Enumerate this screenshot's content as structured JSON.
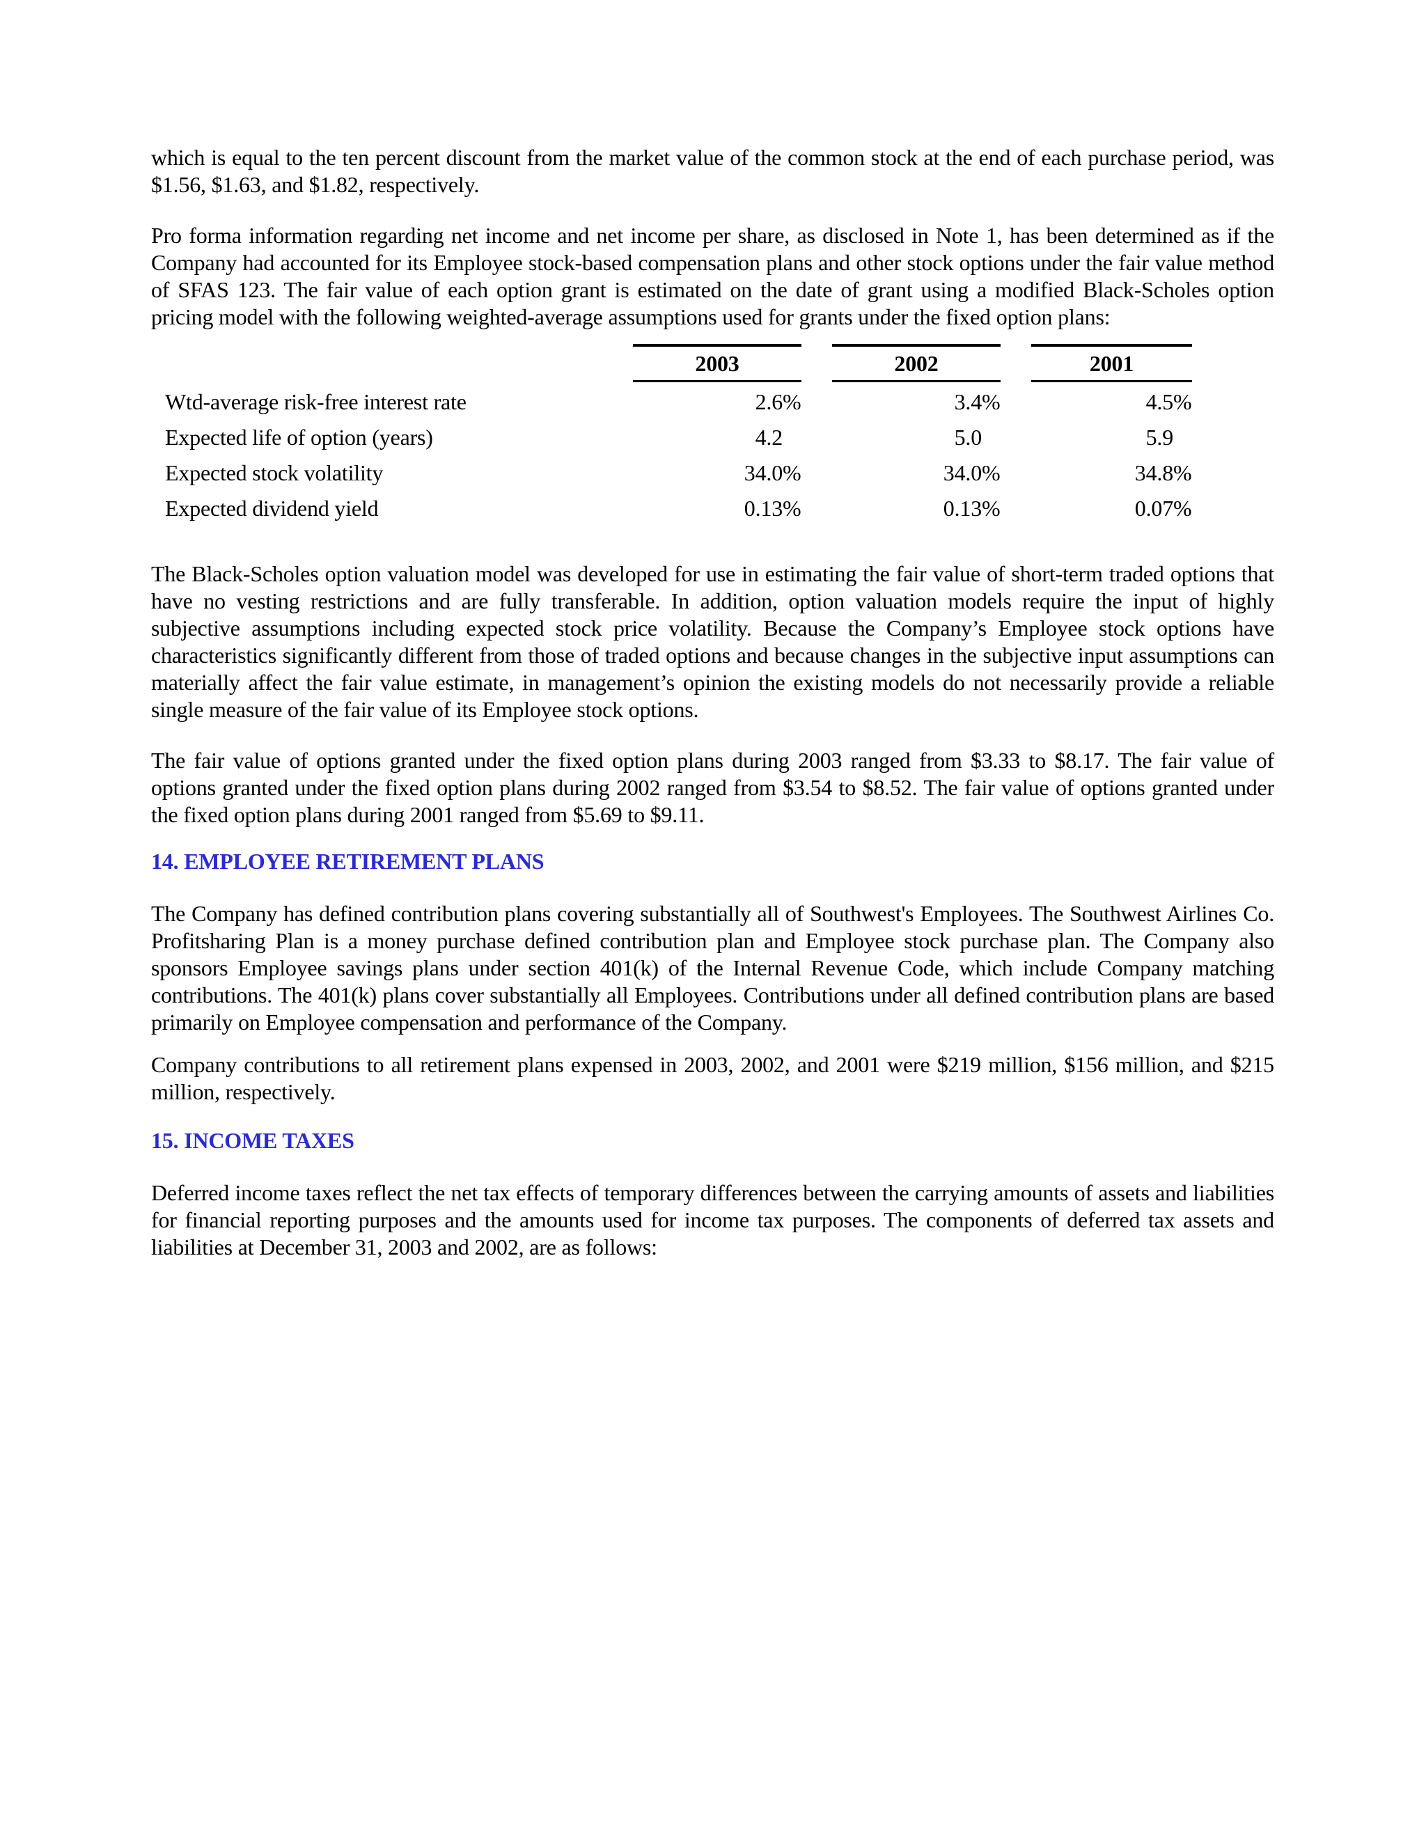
{
  "styles": {
    "heading_color": "#2b2bd1",
    "text_color": "#000000",
    "page_background": "#ffffff"
  },
  "content": {
    "para_discount": "which is equal to the ten percent discount from the market value of the common stock at the end of each purchase period, was $1.56, $1.63, and $1.82, respectively.",
    "para_proforma": "Pro forma information regarding net income and net income per share, as disclosed in Note 1, has been determined as if the Company had accounted for its Employee stock-based compensation plans and other stock options under the fair value method of SFAS 123.  The fair value of each option grant is estimated on the date of grant using a modified Black-Scholes option pricing model with the following weighted-average assumptions used for grants under the fixed option plans:",
    "assumptions_table": {
      "columns": [
        "2003",
        "2002",
        "2001"
      ],
      "rows": [
        {
          "label": "Wtd-average risk-free interest rate",
          "values": [
            "2.6",
            "3.4",
            "4.5"
          ],
          "suffix": "%"
        },
        {
          "label": "Expected life of option (years)",
          "values": [
            "4.2",
            "5.0",
            "5.9"
          ],
          "suffix": ""
        },
        {
          "label": "Expected stock volatility",
          "values": [
            "34.0",
            "34.0",
            "34.8"
          ],
          "suffix": "%"
        },
        {
          "label": "Expected dividend yield",
          "values": [
            "0.13",
            "0.13",
            "0.07"
          ],
          "suffix": "%"
        }
      ]
    },
    "para_blackscholes": "The Black-Scholes option valuation model was developed for use in estimating the fair value of short-term traded options that have no vesting restrictions and are fully transferable.  In addition, option valuation models require the input of highly subjective assumptions including expected stock price volatility.  Because the Company’s Employee stock options have characteristics significantly different from those of traded options and because changes in the subjective input assumptions can materially affect the fair value estimate, in management’s opinion the existing models do not necessarily provide a reliable single measure of the fair value of its Employee stock options.",
    "para_fairvalue": "The fair value of options granted under the fixed option plans during 2003 ranged from $3.33 to $8.17. The fair value of options granted under the fixed option plans during 2002 ranged from $3.54 to $8.52. The fair value of options granted under the fixed option plans during 2001 ranged from $5.69 to $9.11.",
    "heading_retirement": "14. EMPLOYEE RETIREMENT PLANS",
    "para_retirement_plans": "The Company has defined contribution plans covering substantially all of Southwest's Employees.  The Southwest Airlines Co. Profitsharing Plan is a money purchase defined contribution plan and Employee stock purchase plan.  The Company also sponsors Employee savings plans under section 401(k) of the Internal Revenue Code, which include Company matching contributions.  The 401(k) plans cover substantially all Employees.  Contributions under all defined contribution plans are based primarily on Employee compensation and performance of the Company.",
    "para_retirement_contributions": "Company contributions to all retirement plans expensed in 2003, 2002, and 2001 were $219 million, $156 million, and $215 million, respectively.",
    "heading_taxes": "15. INCOME TAXES",
    "para_deferred_taxes": "Deferred income taxes reflect the net tax effects of temporary differences between the carrying amounts of assets and liabilities for financial reporting purposes and the amounts used for income tax purposes.  The components of deferred tax assets and liabilities at December 31, 2003 and 2002, are as follows:"
  }
}
